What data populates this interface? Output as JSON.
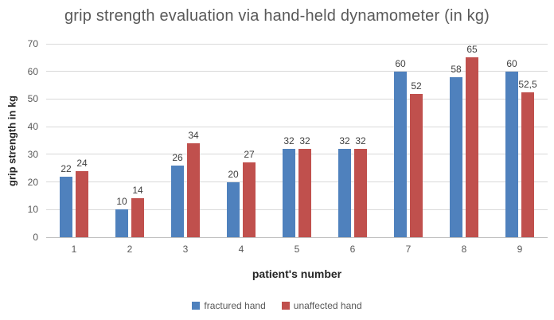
{
  "chart_data": {
    "type": "bar",
    "title": "grip strength evaluation via hand-held dynamometer (in kg)",
    "xlabel": "patient's number",
    "ylabel": "grip strength in kg",
    "categories": [
      "1",
      "2",
      "3",
      "4",
      "5",
      "6",
      "7",
      "8",
      "9"
    ],
    "series": [
      {
        "name": "fractured hand",
        "color": "#4F81BD",
        "values": [
          22,
          10,
          26,
          20,
          32,
          32,
          60,
          58,
          60
        ],
        "labels": [
          "22",
          "10",
          "26",
          "20",
          "32",
          "32",
          "60",
          "58",
          "60"
        ]
      },
      {
        "name": "unaffected hand",
        "color": "#C0504D",
        "values": [
          24,
          14,
          34,
          27,
          32,
          32,
          52,
          65,
          52.5
        ],
        "labels": [
          "24",
          "14",
          "34",
          "27",
          "32",
          "32",
          "52",
          "65",
          "52,5"
        ]
      }
    ],
    "ylim": [
      0,
      70
    ],
    "yticks": [
      0,
      10,
      20,
      30,
      40,
      50,
      60,
      70
    ],
    "grid": true,
    "legend_position": "bottom"
  }
}
